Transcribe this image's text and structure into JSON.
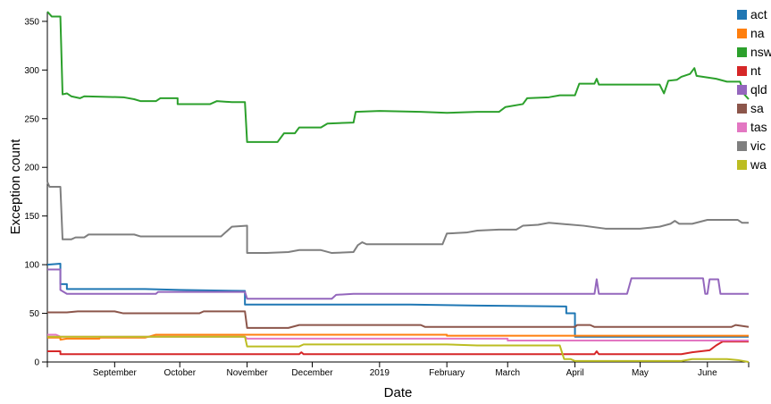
{
  "chart_data": {
    "type": "line",
    "xlabel": "Date",
    "ylabel": "Exception count",
    "ylim": [
      0,
      360
    ],
    "xlim": [
      "2018-08-01",
      "2019-06-20"
    ],
    "yticks": [
      0,
      50,
      100,
      150,
      200,
      250,
      300,
      350
    ],
    "xticks": [
      {
        "label": "September",
        "date": "2018-09-01"
      },
      {
        "label": "October",
        "date": "2018-10-01"
      },
      {
        "label": "November",
        "date": "2018-11-01"
      },
      {
        "label": "December",
        "date": "2018-12-01"
      },
      {
        "label": "2019",
        "date": "2019-01-01"
      },
      {
        "label": "February",
        "date": "2019-02-01"
      },
      {
        "label": "March",
        "date": "2019-03-01"
      },
      {
        "label": "April",
        "date": "2019-04-01"
      },
      {
        "label": "May",
        "date": "2019-05-01"
      },
      {
        "label": "June",
        "date": "2019-06-01"
      }
    ],
    "legend_position": "top-right",
    "series": [
      {
        "name": "act",
        "color": "#1f77b4",
        "points": [
          [
            "2018-08-01",
            100
          ],
          [
            "2018-08-07",
            101
          ],
          [
            "2018-08-07",
            80
          ],
          [
            "2018-08-10",
            80
          ],
          [
            "2018-08-10",
            75
          ],
          [
            "2018-09-15",
            75
          ],
          [
            "2018-10-01",
            74
          ],
          [
            "2018-10-31",
            73
          ],
          [
            "2018-10-31",
            59
          ],
          [
            "2019-01-15",
            59
          ],
          [
            "2019-02-15",
            58
          ],
          [
            "2019-03-28",
            57
          ],
          [
            "2019-03-28",
            50
          ],
          [
            "2019-04-01",
            50
          ],
          [
            "2019-04-01",
            26
          ],
          [
            "2019-06-20",
            26
          ]
        ]
      },
      {
        "name": "na",
        "color": "#ff7f0e",
        "points": [
          [
            "2018-08-01",
            25
          ],
          [
            "2018-08-07",
            25
          ],
          [
            "2018-08-07",
            23
          ],
          [
            "2018-08-10",
            24
          ],
          [
            "2018-08-25",
            24
          ],
          [
            "2018-08-25",
            25
          ],
          [
            "2018-09-15",
            25
          ],
          [
            "2018-09-20",
            28
          ],
          [
            "2018-12-15",
            28
          ],
          [
            "2019-02-01",
            28
          ],
          [
            "2019-02-01",
            27
          ],
          [
            "2019-06-20",
            27
          ]
        ]
      },
      {
        "name": "nsw",
        "color": "#2ca02c",
        "points": [
          [
            "2018-08-01",
            360
          ],
          [
            "2018-08-03",
            355
          ],
          [
            "2018-08-07",
            355
          ],
          [
            "2018-08-08",
            275
          ],
          [
            "2018-08-10",
            276
          ],
          [
            "2018-08-12",
            273
          ],
          [
            "2018-08-16",
            271
          ],
          [
            "2018-08-18",
            273
          ],
          [
            "2018-09-05",
            272
          ],
          [
            "2018-09-10",
            270
          ],
          [
            "2018-09-13",
            268
          ],
          [
            "2018-09-20",
            268
          ],
          [
            "2018-09-22",
            271
          ],
          [
            "2018-09-30",
            271
          ],
          [
            "2018-09-30",
            265
          ],
          [
            "2018-10-15",
            265
          ],
          [
            "2018-10-18",
            268
          ],
          [
            "2018-10-25",
            267
          ],
          [
            "2018-10-31",
            267
          ],
          [
            "2018-11-01",
            226
          ],
          [
            "2018-11-15",
            226
          ],
          [
            "2018-11-18",
            235
          ],
          [
            "2018-11-23",
            235
          ],
          [
            "2018-11-25",
            241
          ],
          [
            "2018-12-05",
            241
          ],
          [
            "2018-12-08",
            245
          ],
          [
            "2018-12-20",
            246
          ],
          [
            "2018-12-21",
            257
          ],
          [
            "2019-01-01",
            258
          ],
          [
            "2019-01-20",
            257
          ],
          [
            "2019-02-01",
            256
          ],
          [
            "2019-02-15",
            257
          ],
          [
            "2019-02-25",
            257
          ],
          [
            "2019-02-28",
            262
          ],
          [
            "2019-03-08",
            265
          ],
          [
            "2019-03-10",
            271
          ],
          [
            "2019-03-20",
            272
          ],
          [
            "2019-03-25",
            274
          ],
          [
            "2019-04-01",
            274
          ],
          [
            "2019-04-03",
            286
          ],
          [
            "2019-04-10",
            286
          ],
          [
            "2019-04-11",
            291
          ],
          [
            "2019-04-12",
            285
          ],
          [
            "2019-04-15",
            285
          ],
          [
            "2019-05-10",
            285
          ],
          [
            "2019-05-12",
            276
          ],
          [
            "2019-05-14",
            289
          ],
          [
            "2019-05-18",
            290
          ],
          [
            "2019-05-20",
            293
          ],
          [
            "2019-05-24",
            296
          ],
          [
            "2019-05-26",
            302
          ],
          [
            "2019-05-27",
            294
          ],
          [
            "2019-06-05",
            291
          ],
          [
            "2019-06-10",
            288
          ],
          [
            "2019-06-16",
            288
          ],
          [
            "2019-06-18",
            275
          ],
          [
            "2019-06-20",
            270
          ]
        ]
      },
      {
        "name": "nt",
        "color": "#d62728",
        "points": [
          [
            "2018-08-01",
            11
          ],
          [
            "2018-08-07",
            11
          ],
          [
            "2018-08-07",
            8
          ],
          [
            "2018-11-25",
            8
          ],
          [
            "2018-11-26",
            10
          ],
          [
            "2018-11-27",
            8
          ],
          [
            "2019-04-10",
            8
          ],
          [
            "2019-04-11",
            11
          ],
          [
            "2019-04-12",
            8
          ],
          [
            "2019-05-20",
            8
          ],
          [
            "2019-05-25",
            10
          ],
          [
            "2019-06-02",
            12
          ],
          [
            "2019-06-05",
            17
          ],
          [
            "2019-06-08",
            21
          ],
          [
            "2019-06-20",
            21
          ]
        ]
      },
      {
        "name": "qld",
        "color": "#9467bd",
        "points": [
          [
            "2018-08-01",
            95
          ],
          [
            "2018-08-07",
            95
          ],
          [
            "2018-08-07",
            74
          ],
          [
            "2018-08-10",
            70
          ],
          [
            "2018-09-20",
            70
          ],
          [
            "2018-09-21",
            72
          ],
          [
            "2018-10-31",
            72
          ],
          [
            "2018-11-01",
            65
          ],
          [
            "2018-12-10",
            65
          ],
          [
            "2018-12-12",
            69
          ],
          [
            "2018-12-20",
            70
          ],
          [
            "2019-02-01",
            70
          ],
          [
            "2019-04-10",
            70
          ],
          [
            "2019-04-11",
            85
          ],
          [
            "2019-04-12",
            70
          ],
          [
            "2019-04-25",
            70
          ],
          [
            "2019-04-27",
            86
          ],
          [
            "2019-05-30",
            86
          ],
          [
            "2019-05-31",
            70
          ],
          [
            "2019-06-01",
            70
          ],
          [
            "2019-06-02",
            85
          ],
          [
            "2019-06-06",
            85
          ],
          [
            "2019-06-07",
            70
          ],
          [
            "2019-06-20",
            70
          ]
        ]
      },
      {
        "name": "sa",
        "color": "#8c564b",
        "points": [
          [
            "2018-08-01",
            51
          ],
          [
            "2018-08-10",
            51
          ],
          [
            "2018-08-15",
            52
          ],
          [
            "2018-09-01",
            52
          ],
          [
            "2018-09-05",
            50
          ],
          [
            "2018-10-10",
            50
          ],
          [
            "2018-10-12",
            52
          ],
          [
            "2018-10-31",
            52
          ],
          [
            "2018-11-01",
            35
          ],
          [
            "2018-11-20",
            35
          ],
          [
            "2018-11-25",
            38
          ],
          [
            "2019-01-20",
            38
          ],
          [
            "2019-01-22",
            36
          ],
          [
            "2019-03-30",
            36
          ],
          [
            "2019-04-01",
            36
          ],
          [
            "2019-04-02",
            38
          ],
          [
            "2019-04-08",
            38
          ],
          [
            "2019-04-10",
            36
          ],
          [
            "2019-06-12",
            36
          ],
          [
            "2019-06-14",
            38
          ],
          [
            "2019-06-20",
            36
          ]
        ]
      },
      {
        "name": "tas",
        "color": "#e377c2",
        "points": [
          [
            "2018-08-01",
            28
          ],
          [
            "2018-08-05",
            28
          ],
          [
            "2018-08-07",
            26
          ],
          [
            "2018-10-31",
            26
          ],
          [
            "2018-11-01",
            24
          ],
          [
            "2019-03-01",
            24
          ],
          [
            "2019-03-01",
            22
          ],
          [
            "2019-06-20",
            22
          ]
        ]
      },
      {
        "name": "vic",
        "color": "#7f7f7f",
        "points": [
          [
            "2018-08-01",
            185
          ],
          [
            "2018-08-02",
            180
          ],
          [
            "2018-08-07",
            180
          ],
          [
            "2018-08-08",
            126
          ],
          [
            "2018-08-12",
            126
          ],
          [
            "2018-08-14",
            128
          ],
          [
            "2018-08-18",
            128
          ],
          [
            "2018-08-20",
            131
          ],
          [
            "2018-09-10",
            131
          ],
          [
            "2018-09-13",
            129
          ],
          [
            "2018-09-25",
            129
          ],
          [
            "2018-10-20",
            129
          ],
          [
            "2018-10-22",
            133
          ],
          [
            "2018-10-25",
            139
          ],
          [
            "2018-11-01",
            140
          ],
          [
            "2018-11-01",
            112
          ],
          [
            "2018-11-10",
            112
          ],
          [
            "2018-11-20",
            113
          ],
          [
            "2018-11-25",
            115
          ],
          [
            "2018-12-05",
            115
          ],
          [
            "2018-12-10",
            112
          ],
          [
            "2018-12-20",
            113
          ],
          [
            "2018-12-22",
            120
          ],
          [
            "2018-12-24",
            123
          ],
          [
            "2018-12-26",
            121
          ],
          [
            "2019-01-30",
            121
          ],
          [
            "2019-02-01",
            132
          ],
          [
            "2019-02-10",
            133
          ],
          [
            "2019-02-15",
            135
          ],
          [
            "2019-02-25",
            136
          ],
          [
            "2019-03-05",
            136
          ],
          [
            "2019-03-08",
            140
          ],
          [
            "2019-03-15",
            141
          ],
          [
            "2019-03-20",
            143
          ],
          [
            "2019-04-05",
            140
          ],
          [
            "2019-04-15",
            137
          ],
          [
            "2019-05-01",
            137
          ],
          [
            "2019-05-10",
            139
          ],
          [
            "2019-05-15",
            142
          ],
          [
            "2019-05-17",
            145
          ],
          [
            "2019-05-19",
            142
          ],
          [
            "2019-05-25",
            142
          ],
          [
            "2019-06-01",
            146
          ],
          [
            "2019-06-15",
            146
          ],
          [
            "2019-06-17",
            143
          ],
          [
            "2019-06-20",
            143
          ]
        ]
      },
      {
        "name": "wa",
        "color": "#bcbd22",
        "points": [
          [
            "2018-08-01",
            26
          ],
          [
            "2018-10-31",
            26
          ],
          [
            "2018-11-01",
            16
          ],
          [
            "2018-11-25",
            16
          ],
          [
            "2018-11-27",
            18
          ],
          [
            "2019-02-01",
            18
          ],
          [
            "2019-02-15",
            17
          ],
          [
            "2019-03-25",
            17
          ],
          [
            "2019-03-27",
            3
          ],
          [
            "2019-03-30",
            3
          ],
          [
            "2019-04-01",
            1
          ],
          [
            "2019-05-20",
            1
          ],
          [
            "2019-05-25",
            3
          ],
          [
            "2019-06-10",
            3
          ],
          [
            "2019-06-15",
            2
          ],
          [
            "2019-06-20",
            0
          ]
        ]
      }
    ]
  }
}
